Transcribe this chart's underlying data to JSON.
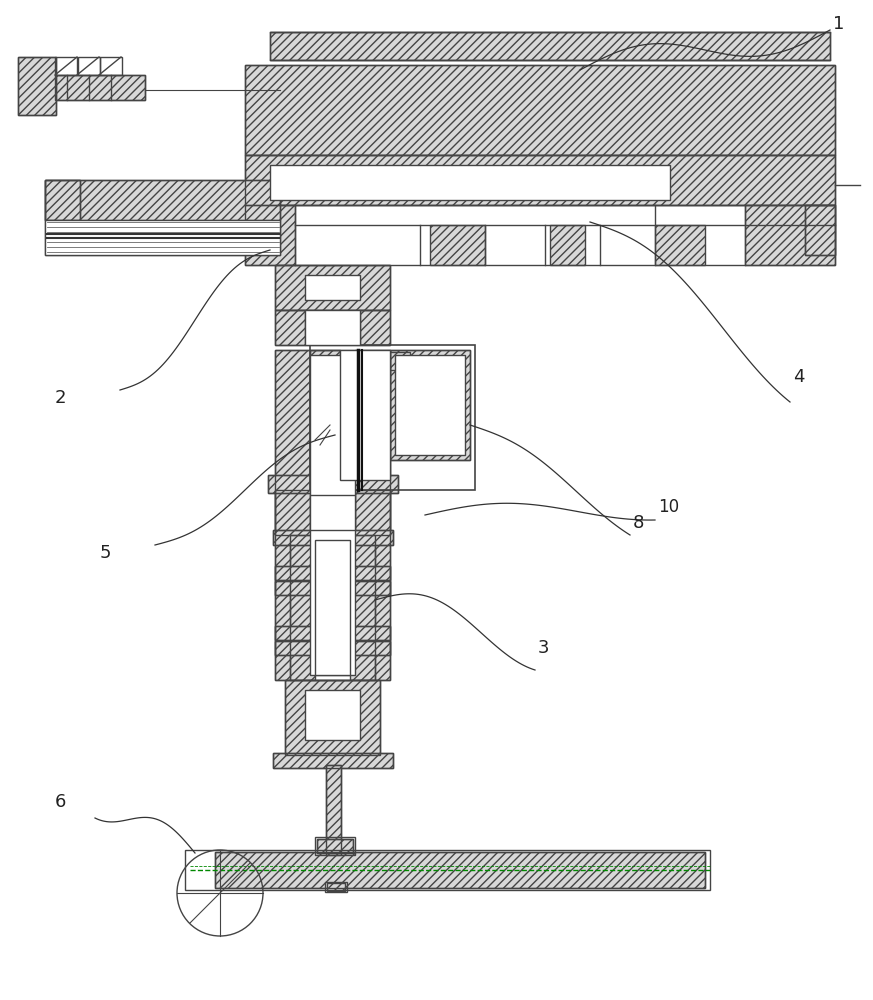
{
  "bg_color": "#ffffff",
  "line_color": "#444444",
  "label_color": "#222222",
  "hatch_fc": "#d8d8d8",
  "line_lw": 1.0,
  "hatch_density": "////"
}
